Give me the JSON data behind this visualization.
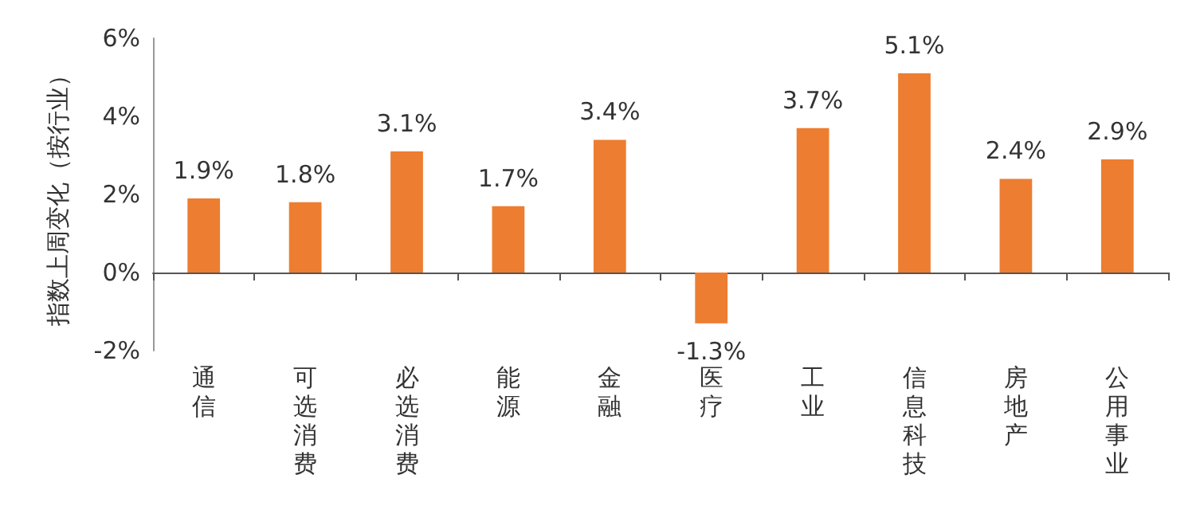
{
  "chart_data": {
    "type": "bar",
    "ylabel": "指数上周变化（按行业）",
    "categories": [
      "通信",
      "可选消费",
      "必选消费",
      "能源",
      "金融",
      "医疗",
      "工业",
      "信息科技",
      "房地产",
      "公用事业"
    ],
    "values": [
      1.9,
      1.8,
      3.1,
      1.7,
      3.4,
      -1.3,
      3.7,
      5.1,
      2.4,
      2.9
    ],
    "color": "#ed7d31",
    "value_labels": [
      "1.9%",
      "1.8%",
      "3.1%",
      "1.7%",
      "3.4%",
      "-1.3%",
      "3.7%",
      "5.1%",
      "2.4%",
      "2.9%"
    ],
    "ylim": [
      -2,
      6
    ],
    "yticks": [
      {
        "value": -2,
        "label": "-2%"
      },
      {
        "value": 0,
        "label": "0%"
      },
      {
        "value": 2,
        "label": "2%"
      },
      {
        "value": 4,
        "label": "4%"
      },
      {
        "value": 6,
        "label": "6%"
      }
    ]
  }
}
